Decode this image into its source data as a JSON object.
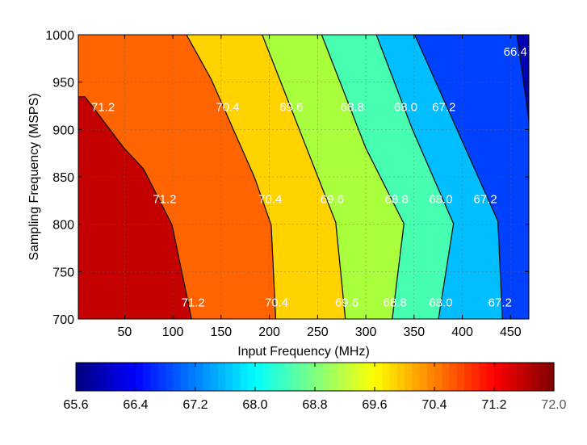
{
  "chart_data": {
    "type": "contourf",
    "title": "",
    "xlabel": "Input Frequency (MHz)",
    "ylabel": "Sampling Frequency (MSPS)",
    "xlim": [
      2,
      469
    ],
    "ylim": [
      700,
      1000
    ],
    "xticks": [
      50,
      100,
      150,
      200,
      250,
      300,
      350,
      400,
      450
    ],
    "yticks": [
      700,
      750,
      800,
      850,
      900,
      950,
      1000
    ],
    "grid": true,
    "base_region_color": "#c40000",
    "levels": [
      {
        "level": "71.2",
        "region_color": "#ff6400",
        "boundary": [
          [
            2,
            934.5
          ],
          [
            8.9,
            934.5
          ],
          [
            49.4,
            880.3
          ],
          [
            69.6,
            858.4
          ],
          [
            99.2,
            799.1
          ],
          [
            119.4,
            700
          ]
        ]
      },
      {
        "level": "70.4",
        "region_color": "#ffd200",
        "boundary": [
          [
            114.1,
            1000
          ],
          [
            139.7,
            953
          ],
          [
            184.8,
            849
          ],
          [
            201.9,
            799.1
          ],
          [
            206.6,
            700
          ]
        ]
      },
      {
        "level": "69.6",
        "region_color": "#aaff3c",
        "boundary": [
          [
            192.6,
            1000
          ],
          [
            268.8,
            802
          ],
          [
            278.8,
            700
          ]
        ]
      },
      {
        "level": "68.8",
        "region_color": "#46ffb0",
        "boundary": [
          [
            254.2,
            1000
          ],
          [
            300,
            880.3
          ],
          [
            339.5,
            800.6
          ],
          [
            327.4,
            700
          ]
        ]
      },
      {
        "level": "68.0",
        "region_color": "#00beff",
        "boundary": [
          [
            310.9,
            1000
          ],
          [
            348.2,
            900.3
          ],
          [
            390.9,
            800.6
          ],
          [
            375.3,
            700
          ]
        ]
      },
      {
        "level": "67.2",
        "region_color": "#0040ff",
        "boundary": [
          [
            350.7,
            1000
          ],
          [
            436.9,
            803.4
          ],
          [
            441.6,
            700
          ]
        ]
      },
      {
        "level": "66.4",
        "region_color": "#0000b4",
        "boundary": [
          [
            456.6,
            1000
          ],
          [
            469,
            910.3
          ]
        ]
      }
    ],
    "contour_labels": [
      {
        "text": "71.2",
        "x": 27.6,
        "y": 924.5
      },
      {
        "text": "70.4",
        "x": 156.8,
        "y": 924.5
      },
      {
        "text": "69.6",
        "x": 222.8,
        "y": 924.5
      },
      {
        "text": "68.8",
        "x": 286,
        "y": 924.5
      },
      {
        "text": "68.0",
        "x": 341.4,
        "y": 924.5
      },
      {
        "text": "67.2",
        "x": 380.9,
        "y": 924.5
      },
      {
        "text": "71.2",
        "x": 91.4,
        "y": 827.6
      },
      {
        "text": "70.4",
        "x": 201,
        "y": 827.6
      },
      {
        "text": "69.6",
        "x": 265.1,
        "y": 827.6
      },
      {
        "text": "68.8",
        "x": 332,
        "y": 827.6
      },
      {
        "text": "68.0",
        "x": 377.8,
        "y": 827.6
      },
      {
        "text": "67.2",
        "x": 423.9,
        "y": 827.6
      },
      {
        "text": "71.2",
        "x": 121,
        "y": 718.5
      },
      {
        "text": "70.4",
        "x": 207.5,
        "y": 718.5
      },
      {
        "text": "69.6",
        "x": 280.4,
        "y": 718.5
      },
      {
        "text": "68.8",
        "x": 330.2,
        "y": 718.5
      },
      {
        "text": "68.0",
        "x": 377.8,
        "y": 718.5
      },
      {
        "text": "67.2",
        "x": 439.1,
        "y": 718.5
      },
      {
        "text": "66.4",
        "x": 455,
        "y": 982.9
      }
    ],
    "colorbar": {
      "orientation": "horizontal",
      "colormap": "jet",
      "range": [
        65.6,
        72.0
      ],
      "ticks": [
        "65.6",
        "66.4",
        "67.2",
        "68.0",
        "68.8",
        "69.6",
        "70.4",
        "71.2",
        "72.0"
      ]
    }
  }
}
